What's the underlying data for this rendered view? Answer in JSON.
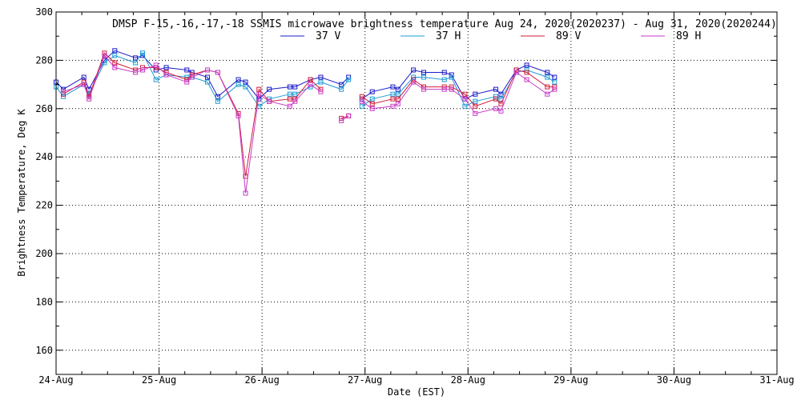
{
  "chart_data": {
    "type": "line",
    "title": "DMSP F-15,-16,-17,-18 SSMIS microwave brightness temperature Aug 24, 2020(2020237) - Aug 31, 2020(2020244)",
    "xlabel": "Date (EST)",
    "ylabel": "Brightness Temperature, Deg K",
    "xlim": [
      0,
      7
    ],
    "ylim": [
      150,
      300
    ],
    "x_ticks": [
      {
        "value": 0,
        "label": "24-Aug"
      },
      {
        "value": 1,
        "label": "25-Aug"
      },
      {
        "value": 2,
        "label": "26-Aug"
      },
      {
        "value": 3,
        "label": "27-Aug"
      },
      {
        "value": 4,
        "label": "28-Aug"
      },
      {
        "value": 5,
        "label": "29-Aug"
      },
      {
        "value": 6,
        "label": "30-Aug"
      },
      {
        "value": 7,
        "label": "31-Aug"
      }
    ],
    "y_ticks": [
      {
        "value": 160,
        "label": "160"
      },
      {
        "value": 180,
        "label": "180"
      },
      {
        "value": 200,
        "label": "200"
      },
      {
        "value": 220,
        "label": "220"
      },
      {
        "value": 240,
        "label": "240"
      },
      {
        "value": 260,
        "label": "260"
      },
      {
        "value": 280,
        "label": "280"
      },
      {
        "value": 300,
        "label": "300"
      }
    ],
    "grid": true,
    "legend_position": "top-center",
    "series": [
      {
        "name": "37 V",
        "color": "#1c1cc8",
        "segments": [
          [
            [
              0.0,
              271
            ],
            [
              0.07,
              268
            ],
            [
              0.27,
              273
            ],
            [
              0.32,
              268
            ],
            [
              0.47,
              280
            ],
            [
              0.57,
              284
            ],
            [
              0.77,
              281
            ],
            [
              0.84,
              282
            ],
            [
              0.97,
              276
            ],
            [
              1.07,
              277
            ],
            [
              1.27,
              276
            ],
            [
              1.32,
              275
            ],
            [
              1.47,
              273
            ],
            [
              1.57,
              265
            ],
            [
              1.77,
              272
            ],
            [
              1.84,
              271
            ],
            [
              1.97,
              264
            ],
            [
              2.07,
              268
            ],
            [
              2.27,
              269
            ],
            [
              2.32,
              269
            ],
            [
              2.47,
              272
            ],
            [
              2.57,
              273
            ],
            [
              2.77,
              270
            ],
            [
              2.84,
              273
            ]
          ],
          [
            [
              2.97,
              264
            ],
            [
              3.07,
              267
            ],
            [
              3.27,
              269
            ],
            [
              3.32,
              268
            ],
            [
              3.47,
              276
            ],
            [
              3.57,
              275
            ],
            [
              3.77,
              275
            ],
            [
              3.84,
              274
            ],
            [
              3.97,
              264
            ],
            [
              4.07,
              266
            ],
            [
              4.27,
              268
            ],
            [
              4.32,
              266
            ],
            [
              4.47,
              276
            ],
            [
              4.57,
              278
            ],
            [
              4.77,
              275
            ],
            [
              4.84,
              273
            ]
          ]
        ]
      },
      {
        "name": "37 H",
        "color": "#1e9bd7",
        "segments": [
          [
            [
              0.0,
              269
            ],
            [
              0.07,
              265
            ],
            [
              0.27,
              270
            ],
            [
              0.32,
              266
            ],
            [
              0.47,
              279
            ],
            [
              0.57,
              282
            ],
            [
              0.77,
              279
            ],
            [
              0.84,
              283
            ],
            [
              0.97,
              272
            ],
            [
              1.07,
              274
            ],
            [
              1.27,
              273
            ],
            [
              1.32,
              273
            ],
            [
              1.47,
              271
            ],
            [
              1.57,
              263
            ],
            [
              1.77,
              270
            ],
            [
              1.84,
              269
            ],
            [
              1.97,
              261
            ],
            [
              2.07,
              264
            ],
            [
              2.27,
              266
            ],
            [
              2.32,
              266
            ],
            [
              2.47,
              269
            ],
            [
              2.57,
              271
            ],
            [
              2.77,
              268
            ],
            [
              2.84,
              272
            ]
          ],
          [
            [
              2.97,
              261
            ],
            [
              3.07,
              264
            ],
            [
              3.27,
              266
            ],
            [
              3.32,
              266
            ],
            [
              3.47,
              273
            ],
            [
              3.57,
              273
            ],
            [
              3.77,
              272
            ],
            [
              3.84,
              273
            ],
            [
              3.97,
              261
            ],
            [
              4.07,
              263
            ],
            [
              4.27,
              265
            ],
            [
              4.32,
              264
            ],
            [
              4.47,
              275
            ],
            [
              4.57,
              276
            ],
            [
              4.77,
              273
            ],
            [
              4.84,
              271
            ]
          ]
        ]
      },
      {
        "name": "89 V",
        "color": "#d21e3c",
        "segments": [
          [
            [
              0.07,
              266
            ],
            [
              0.27,
              271
            ],
            [
              0.32,
              265
            ],
            [
              0.47,
              283
            ],
            [
              0.57,
              279
            ],
            [
              0.77,
              276
            ],
            [
              0.84,
              277
            ],
            [
              0.97,
              277
            ],
            [
              1.07,
              275
            ],
            [
              1.27,
              272
            ],
            [
              1.32,
              274
            ],
            [
              1.47,
              276
            ],
            [
              1.57,
              275
            ],
            [
              1.77,
              258
            ],
            [
              1.84,
              232
            ],
            [
              1.97,
              268
            ],
            [
              2.07,
              263
            ],
            [
              2.27,
              264
            ],
            [
              2.32,
              264
            ],
            [
              2.47,
              272
            ],
            [
              2.57,
              268
            ]
          ],
          [
            [
              2.77,
              256
            ],
            [
              2.84,
              257
            ]
          ],
          [
            [
              2.97,
              265
            ],
            [
              3.07,
              262
            ],
            [
              3.27,
              264
            ],
            [
              3.32,
              264
            ],
            [
              3.47,
              272
            ],
            [
              3.57,
              269
            ],
            [
              3.77,
              269
            ],
            [
              3.84,
              269
            ],
            [
              3.97,
              266
            ],
            [
              4.07,
              261
            ],
            [
              4.27,
              264
            ],
            [
              4.32,
              262
            ],
            [
              4.47,
              276
            ],
            [
              4.57,
              275
            ],
            [
              4.77,
              269
            ],
            [
              4.84,
              269
            ]
          ]
        ]
      },
      {
        "name": "89 H",
        "color": "#c83cc8",
        "segments": [
          [
            [
              0.07,
              267
            ],
            [
              0.27,
              270
            ],
            [
              0.32,
              264
            ],
            [
              0.47,
              282
            ],
            [
              0.57,
              277
            ],
            [
              0.77,
              275
            ],
            [
              0.84,
              276
            ],
            [
              0.97,
              278
            ],
            [
              1.07,
              274
            ],
            [
              1.27,
              271
            ],
            [
              1.32,
              273
            ],
            [
              1.47,
              276
            ],
            [
              1.57,
              275
            ],
            [
              1.77,
              257
            ],
            [
              1.84,
              225
            ],
            [
              1.97,
              266
            ],
            [
              2.07,
              263
            ],
            [
              2.27,
              261
            ],
            [
              2.32,
              263
            ],
            [
              2.47,
              270
            ],
            [
              2.57,
              267
            ]
          ],
          [
            [
              2.77,
              255
            ],
            [
              2.84,
              257
            ]
          ],
          [
            [
              2.97,
              263
            ],
            [
              3.07,
              260
            ],
            [
              3.27,
              261
            ],
            [
              3.32,
              262
            ],
            [
              3.47,
              271
            ],
            [
              3.57,
              268
            ],
            [
              3.77,
              268
            ],
            [
              3.84,
              268
            ],
            [
              3.97,
              264
            ],
            [
              4.07,
              258
            ],
            [
              4.27,
              260
            ],
            [
              4.32,
              259
            ],
            [
              4.47,
              275
            ],
            [
              4.57,
              272
            ],
            [
              4.77,
              266
            ],
            [
              4.84,
              268
            ]
          ]
        ]
      }
    ]
  }
}
